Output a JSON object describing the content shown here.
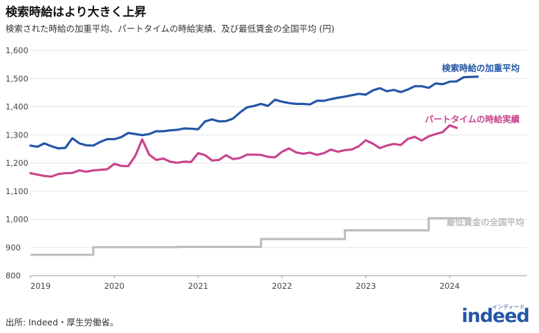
{
  "header": {
    "title": "検索時給はより大きく上昇",
    "subtitle": "検索された時給の加重平均、パートタイムの時給実績、及び最低賃金の全国平均 (円)"
  },
  "footer": {
    "source": "出所: Indeed・厚生労働省。",
    "logo_text": "indeed",
    "logo_kana": "インディード"
  },
  "colors": {
    "search": "#2355a6",
    "part": "#c9448c",
    "minwage": "#bdbdbd",
    "grid": "#e3e3e3"
  },
  "chart_data": {
    "type": "line",
    "title": "検索時給はより大きく上昇",
    "subtitle": "検索された時給の加重平均、パートタイムの時給実績、及び最低賃金の全国平均 (円)",
    "xlabel": "",
    "ylabel": "",
    "x_range": [
      "2019-01",
      "2024-12"
    ],
    "ylim": [
      800,
      1600
    ],
    "y_ticks": [
      800,
      900,
      1000,
      1100,
      1200,
      1300,
      1400,
      1500,
      1600
    ],
    "y_tick_labels": [
      "800",
      "900",
      "1,000",
      "1,100",
      "1,200",
      "1,300",
      "1,400",
      "1,500",
      "1,600"
    ],
    "x_ticks": [
      "2019-01",
      "2020-01",
      "2021-01",
      "2022-01",
      "2023-01",
      "2024-01"
    ],
    "x_tick_labels": [
      "2019",
      "2020",
      "2021",
      "2022",
      "2023",
      "2024"
    ],
    "grid": "horizontal",
    "legend": "inline labels at line ends",
    "series": [
      {
        "name": "検索時給の加重平均",
        "start": "2019-01",
        "values": [
          1262,
          1258,
          1270,
          1260,
          1252,
          1254,
          1288,
          1270,
          1263,
          1262,
          1275,
          1285,
          1285,
          1292,
          1307,
          1303,
          1299,
          1303,
          1313,
          1313,
          1316,
          1318,
          1323,
          1322,
          1320,
          1348,
          1355,
          1348,
          1349,
          1358,
          1380,
          1398,
          1403,
          1410,
          1403,
          1425,
          1418,
          1413,
          1410,
          1410,
          1408,
          1421,
          1421,
          1427,
          1432,
          1436,
          1441,
          1446,
          1443,
          1458,
          1466,
          1455,
          1460,
          1452,
          1461,
          1473,
          1473,
          1467,
          1483,
          1480,
          1489,
          1490,
          1505,
          1506,
          1507
        ]
      },
      {
        "name": "パートタイムの時給実績",
        "start": "2019-01",
        "values": [
          1164,
          1159,
          1154,
          1152,
          1161,
          1164,
          1165,
          1174,
          1169,
          1174,
          1176,
          1178,
          1197,
          1190,
          1189,
          1225,
          1284,
          1230,
          1211,
          1216,
          1205,
          1201,
          1205,
          1204,
          1235,
          1228,
          1209,
          1211,
          1228,
          1214,
          1218,
          1230,
          1230,
          1229,
          1222,
          1220,
          1240,
          1252,
          1238,
          1233,
          1237,
          1229,
          1235,
          1248,
          1240,
          1246,
          1248,
          1260,
          1281,
          1269,
          1253,
          1262,
          1268,
          1264,
          1286,
          1293,
          1280,
          1295,
          1303,
          1310,
          1334,
          1325
        ]
      },
      {
        "name": "最低賃金の全国平均",
        "step": true,
        "segments": [
          {
            "from": "2019-01",
            "to": "2019-10",
            "value": 874
          },
          {
            "from": "2019-10",
            "to": "2020-10",
            "value": 901
          },
          {
            "from": "2020-10",
            "to": "2021-10",
            "value": 902
          },
          {
            "from": "2021-10",
            "to": "2022-10",
            "value": 930
          },
          {
            "from": "2022-10",
            "to": "2023-10",
            "value": 961
          },
          {
            "from": "2023-10",
            "to": "2024-04",
            "value": 1004
          }
        ]
      }
    ]
  }
}
